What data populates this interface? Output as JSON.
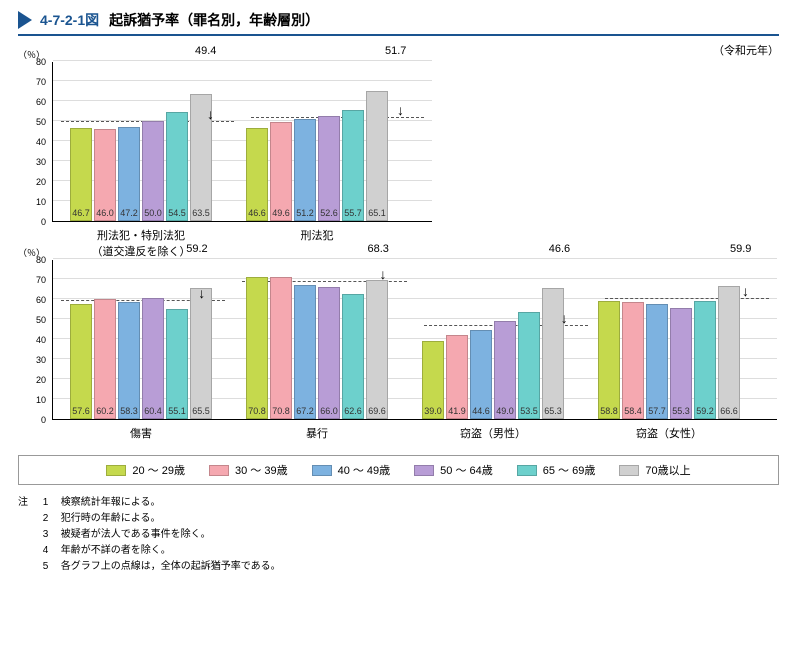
{
  "figure_number": "4-7-2-1図",
  "figure_title": "起訴猶予率（罪名別，年齢層別）",
  "era": "（令和元年）",
  "y_unit": "（％）",
  "y_max": 80,
  "y_ticks": [
    0,
    10,
    20,
    30,
    40,
    50,
    60,
    70,
    80
  ],
  "age_groups": [
    "20 ～ 29歳",
    "30 ～ 39歳",
    "40 ～ 49歳",
    "50 ～ 64歳",
    "65 ～ 69歳",
    "70歳以上"
  ],
  "colors": [
    "#c5d94d",
    "#f5a8b0",
    "#7db2e0",
    "#b89dd6",
    "#6dd0cc",
    "#d0d0d0"
  ],
  "group_label_color": "#333",
  "chart1_width": 380,
  "chart2_width": 725,
  "row1_groups": [
    {
      "label": "刑法犯・特別法犯\n（道交違反を除く）",
      "values": [
        46.7,
        46.0,
        47.2,
        50.0,
        54.5,
        63.5
      ],
      "ref": 49.4
    },
    {
      "label": "刑法犯",
      "values": [
        46.6,
        49.6,
        51.2,
        52.6,
        55.7,
        65.1
      ],
      "ref": 51.7
    }
  ],
  "row2_groups": [
    {
      "label": "傷害",
      "values": [
        57.6,
        60.2,
        58.3,
        60.4,
        55.1,
        65.5
      ],
      "ref": 59.2
    },
    {
      "label": "暴行",
      "values": [
        70.8,
        70.8,
        67.2,
        66.0,
        62.6,
        69.6
      ],
      "ref": 68.3
    },
    {
      "label": "窃盗（男性）",
      "values": [
        39.0,
        41.9,
        44.6,
        49.0,
        53.5,
        65.3
      ],
      "ref": 46.6
    },
    {
      "label": "窃盗（女性）",
      "values": [
        58.8,
        58.4,
        57.7,
        55.3,
        59.2,
        66.6
      ],
      "ref": 59.9
    }
  ],
  "notes_label": "注",
  "notes": [
    "検察統計年報による。",
    "犯行時の年齢による。",
    "被疑者が法人である事件を除く。",
    "年齢が不詳の者を除く。",
    "各グラフ上の点線は，全体の起訴猶予率である。"
  ]
}
